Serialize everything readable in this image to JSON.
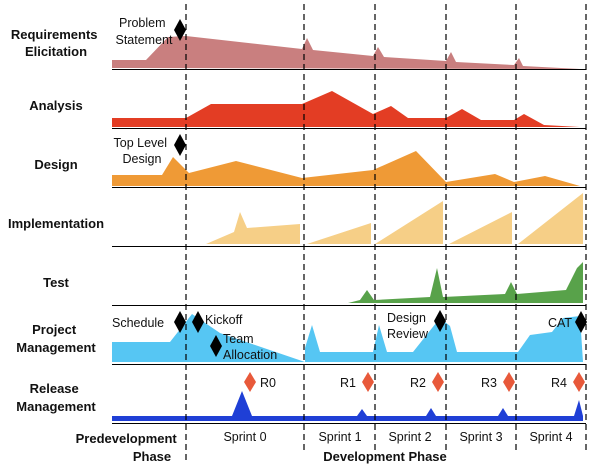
{
  "lanes": [
    {
      "id": "req",
      "label": [
        "Requirements",
        "Elicitation"
      ],
      "color": "#c97f7f"
    },
    {
      "id": "analysis",
      "label": [
        "Analysis"
      ],
      "color": "#e33d24"
    },
    {
      "id": "design",
      "label": [
        "Design"
      ],
      "color": "#ef9a36"
    },
    {
      "id": "impl",
      "label": [
        "Implementation"
      ],
      "color": "#f6cf87"
    },
    {
      "id": "test",
      "label": [
        "Test"
      ],
      "color": "#58a24a"
    },
    {
      "id": "pm",
      "label": [
        "Project",
        "Management"
      ],
      "color": "#56c6f3"
    },
    {
      "id": "release",
      "label": [
        "Release",
        "Management"
      ],
      "color": "#1f3fd6"
    }
  ],
  "milestones": {
    "problem_statement": [
      "Problem",
      "Statement"
    ],
    "top_level_design": [
      "Top Level",
      "Design"
    ],
    "schedule": "Schedule",
    "kickoff": "Kickoff",
    "team_allocation": [
      "Team",
      "Allocation"
    ],
    "design_review": [
      "Design",
      "Review"
    ],
    "cat": "CAT"
  },
  "releases": [
    "R0",
    "R1",
    "R2",
    "R3",
    "R4"
  ],
  "sprints": [
    "Sprint 0",
    "Sprint 1",
    "Sprint 2",
    "Sprint 3",
    "Sprint 4"
  ],
  "phases": {
    "pre": [
      "Predevelopment",
      "Phase"
    ],
    "dev": "Development Phase"
  },
  "colors": {
    "milestone": "#000000",
    "release_marker": "#e8593a",
    "grid": "#000000"
  }
}
